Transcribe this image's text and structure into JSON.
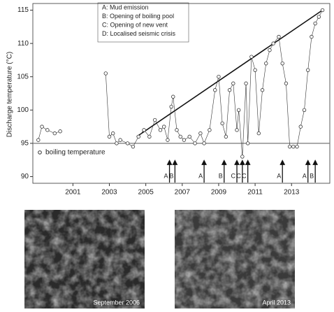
{
  "chart_data": {
    "type": "line",
    "ylabel": "Discharge temperature (°C)",
    "x": [
      1999.1,
      1999.3,
      1999.6,
      2000.0,
      2000.3,
      2001.5,
      2002.8,
      2003.0,
      2003.2,
      2003.4,
      2003.6,
      2004.0,
      2004.3,
      2004.6,
      2004.9,
      2005.2,
      2005.5,
      2005.8,
      2006.0,
      2006.2,
      2006.4,
      2006.5,
      2006.7,
      2006.9,
      2007.1,
      2007.4,
      2007.7,
      2008.0,
      2008.2,
      2008.5,
      2008.8,
      2009.0,
      2009.2,
      2009.4,
      2009.6,
      2009.8,
      2010.0,
      2010.1,
      2010.3,
      2010.5,
      2010.6,
      2010.8,
      2011.0,
      2011.2,
      2011.4,
      2011.6,
      2011.8,
      2012.0,
      2012.3,
      2012.5,
      2012.7,
      2012.9,
      2013.1,
      2013.3,
      2013.5,
      2013.7,
      2013.9,
      2014.1,
      2014.3,
      2014.5,
      2014.7
    ],
    "series": [
      {
        "color": "#333333",
        "values": [
          95.5,
          97.5,
          97,
          96.5,
          96.8,
          null,
          105.5,
          96,
          96.5,
          95,
          95.5,
          95,
          94.5,
          96,
          97,
          96,
          98.5,
          97,
          97.5,
          95.5,
          100.5,
          102,
          97,
          96,
          95.5,
          96,
          95,
          96.5,
          95,
          97,
          103,
          105,
          98,
          96,
          103,
          104,
          97,
          100,
          93,
          104,
          95,
          108,
          106,
          96.5,
          103,
          107,
          109,
          110,
          111,
          107,
          104,
          94.5,
          94.5,
          94.5,
          97.5,
          100,
          106,
          111,
          113,
          114,
          115
        ]
      }
    ],
    "trend": {
      "x": [
        2004.5,
        2014.7
      ],
      "y": [
        96,
        115
      ]
    },
    "boiling_temperature": 95,
    "boiling_label": "boiling temperature",
    "annotations": [
      "A: Mud emission",
      "B: Opening of boiling pool",
      "C: Opening of new vent",
      "D: Localised seismic crisis"
    ],
    "events": [
      {
        "label": "A",
        "x": 2006.3
      },
      {
        "label": "B",
        "x": 2006.6
      },
      {
        "label": "A",
        "x": 2008.2
      },
      {
        "label": "B",
        "x": 2009.3
      },
      {
        "label": "C",
        "x": 2010.0
      },
      {
        "label": "C",
        "x": 2010.3
      },
      {
        "label": "C",
        "x": 2010.6
      },
      {
        "label": "A",
        "x": 2012.5
      },
      {
        "label": "A",
        "x": 2013.9
      },
      {
        "label": "B",
        "x": 2014.3
      }
    ],
    "xlim": [
      1998.8,
      2015.1
    ],
    "ylim": [
      89,
      116
    ],
    "xticks": [
      2001,
      2003,
      2005,
      2007,
      2009,
      2011,
      2013
    ],
    "yticks": [
      90,
      95,
      100,
      105,
      110,
      115
    ]
  },
  "photos": [
    {
      "caption": "September 2006"
    },
    {
      "caption": "April 2013"
    }
  ]
}
